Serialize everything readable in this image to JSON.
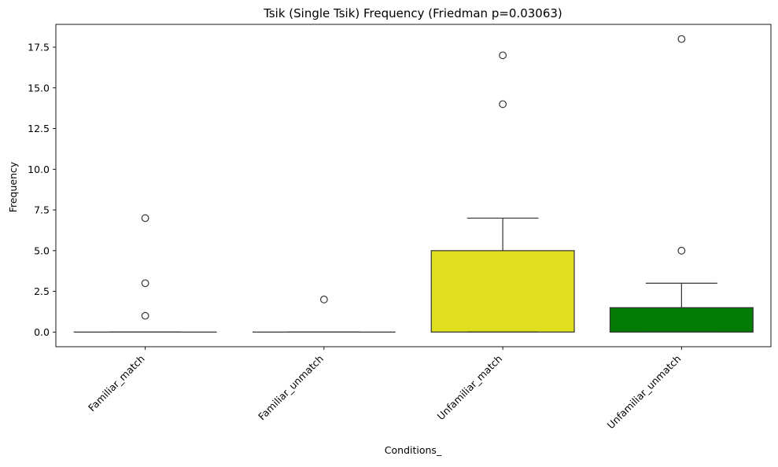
{
  "chart_data": {
    "type": "box",
    "title": "Tsik (Single Tsik) Frequency (Friedman p=0.03063)",
    "xlabel": "Conditions_",
    "ylabel": "Frequency",
    "ylim": [
      -0.9,
      18.9
    ],
    "yticks": [
      "0.0",
      "2.5",
      "5.0",
      "7.5",
      "10.0",
      "12.5",
      "15.0",
      "17.5"
    ],
    "ytick_values": [
      0,
      2.5,
      5,
      7.5,
      10,
      12.5,
      15,
      17.5
    ],
    "grid": false,
    "categories": [
      "Familiar_match",
      "Familiar_unmatch",
      "Unfamiliar_match",
      "Unfamiliar_unmatch"
    ],
    "boxes": [
      {
        "q1": 0,
        "median": 0,
        "q3": 0,
        "whisker_low": 0,
        "whisker_high": 0,
        "fliers": [
          7,
          3,
          1
        ],
        "color": "#ffffff"
      },
      {
        "q1": 0,
        "median": 0,
        "q3": 0,
        "whisker_low": 0,
        "whisker_high": 0,
        "fliers": [
          2
        ],
        "color": "#ffffff"
      },
      {
        "q1": 0,
        "median": 0,
        "q3": 5,
        "whisker_low": 0,
        "whisker_high": 7,
        "fliers": [
          17,
          14
        ],
        "color": "#e0df1f"
      },
      {
        "q1": 0,
        "median": 0,
        "q3": 1.5,
        "whisker_low": 0,
        "whisker_high": 3,
        "fliers": [
          18,
          5
        ],
        "color": "#047c04"
      }
    ]
  }
}
